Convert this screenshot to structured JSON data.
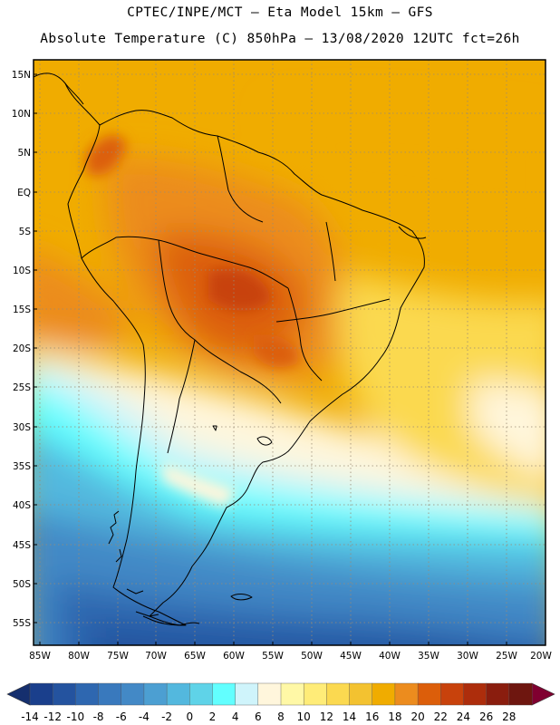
{
  "header": {
    "line1": "CPTEC/INPE/MCT –  Eta Model 15km – GFS",
    "line2": "Absolute Temperature (C) 850hPa – 13/08/2020 12UTC fct=26h"
  },
  "map": {
    "lat_labels": [
      "15N",
      "10N",
      "5N",
      "EQ",
      "5S",
      "10S",
      "15S",
      "20S",
      "25S",
      "30S",
      "35S",
      "40S",
      "45S",
      "50S",
      "55S"
    ],
    "lon_labels": [
      "85W",
      "80W",
      "75W",
      "70W",
      "65W",
      "60W",
      "55W",
      "50W",
      "45W",
      "40W",
      "35W",
      "30W",
      "25W",
      "20W"
    ]
  },
  "colorbar": {
    "ticks": [
      "-14",
      "-12",
      "-10",
      "-8",
      "-6",
      "-4",
      "-2",
      "0",
      "2",
      "4",
      "6",
      "8",
      "10",
      "12",
      "14",
      "16",
      "18",
      "20",
      "22",
      "24",
      "26",
      "28"
    ],
    "colors": [
      "#1a3f8c",
      "#24539f",
      "#2e67b0",
      "#3979bd",
      "#4389c6",
      "#4c9fd2",
      "#53b8de",
      "#5fd3e8",
      "#62ffff",
      "#cff4fb",
      "#fff6dc",
      "#fff8a6",
      "#ffec78",
      "#fbd950",
      "#f3c230",
      "#f0ac00",
      "#ec8c1e",
      "#dc5e0a",
      "#c8420c",
      "#ad2d0c",
      "#8a1d0e",
      "#6e160f"
    ],
    "under_color": "#152f6e",
    "over_color": "#800030"
  }
}
